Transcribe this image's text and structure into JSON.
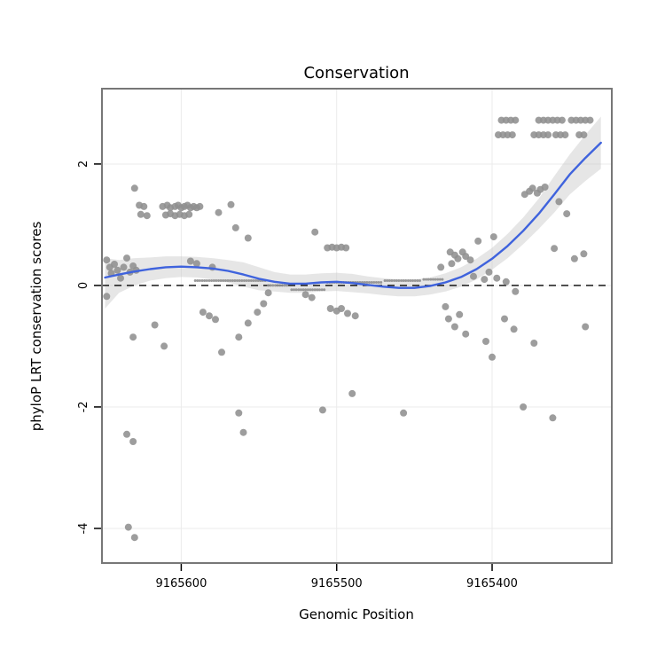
{
  "chart_data": {
    "type": "scatter",
    "title": "Conservation",
    "xlabel": "Genomic Position",
    "ylabel": "phyloP LRT conservation scores",
    "legend": "none",
    "grid": "on",
    "x_axis_reversed": true,
    "x_ticks": [
      9165600,
      9165500,
      9165400
    ],
    "y_ticks": [
      2,
      0,
      -2,
      -4
    ],
    "x_domain": [
      9165651,
      9165323
    ],
    "y_domain": [
      3.24,
      -4.57
    ],
    "reference_line_y": 0,
    "colors": {
      "point": "#8f8f8f",
      "line": "#3f63dd",
      "ribbon": "#c8c8c8",
      "border": "#777777",
      "grid": "#ebebeb",
      "axis": "#000000"
    },
    "points": [
      [
        9165648,
        0.42
      ],
      [
        9165646,
        0.3
      ],
      [
        9165645,
        0.2
      ],
      [
        9165643,
        0.35
      ],
      [
        9165641,
        0.25
      ],
      [
        9165639,
        0.12
      ],
      [
        9165637,
        0.3
      ],
      [
        9165635,
        0.45
      ],
      [
        9165633,
        0.22
      ],
      [
        9165631,
        0.32
      ],
      [
        9165629,
        0.25
      ],
      [
        9165630,
        1.6
      ],
      [
        9165627,
        1.32
      ],
      [
        9165624,
        1.3
      ],
      [
        9165626,
        1.17
      ],
      [
        9165622,
        1.15
      ],
      [
        9165612,
        1.3
      ],
      [
        9165609,
        1.32
      ],
      [
        9165607,
        1.28
      ],
      [
        9165604,
        1.3
      ],
      [
        9165602,
        1.32
      ],
      [
        9165600,
        1.28
      ],
      [
        9165598,
        1.3
      ],
      [
        9165596,
        1.32
      ],
      [
        9165594,
        1.28
      ],
      [
        9165592,
        1.3
      ],
      [
        9165590,
        1.28
      ],
      [
        9165588,
        1.3
      ],
      [
        9165610,
        1.16
      ],
      [
        9165607,
        1.18
      ],
      [
        9165604,
        1.15
      ],
      [
        9165601,
        1.17
      ],
      [
        9165598,
        1.15
      ],
      [
        9165595,
        1.17
      ],
      [
        9165576,
        1.2
      ],
      [
        9165568,
        1.33
      ],
      [
        9165565,
        0.95
      ],
      [
        9165557,
        0.78
      ],
      [
        9165594,
        0.4
      ],
      [
        9165590,
        0.36
      ],
      [
        9165580,
        0.3
      ],
      [
        9165648,
        -0.18
      ],
      [
        9165631,
        -0.85
      ],
      [
        9165617,
        -0.65
      ],
      [
        9165611,
        -1.0
      ],
      [
        9165586,
        -0.44
      ],
      [
        9165582,
        -0.5
      ],
      [
        9165578,
        -0.56
      ],
      [
        9165574,
        -1.1
      ],
      [
        9165563,
        -0.85
      ],
      [
        9165557,
        -0.62
      ],
      [
        9165551,
        -0.44
      ],
      [
        9165547,
        -0.3
      ],
      [
        9165544,
        -0.12
      ],
      [
        9165635,
        -2.45
      ],
      [
        9165631,
        -2.57
      ],
      [
        9165634,
        -3.98
      ],
      [
        9165630,
        -4.15
      ],
      [
        9165563,
        -2.1
      ],
      [
        9165560,
        -2.42
      ],
      [
        9165514,
        0.88
      ],
      [
        9165506,
        0.62
      ],
      [
        9165503,
        0.63
      ],
      [
        9165500,
        0.62
      ],
      [
        9165497,
        0.63
      ],
      [
        9165494,
        0.62
      ],
      [
        9165520,
        -0.15
      ],
      [
        9165516,
        -0.2
      ],
      [
        9165504,
        -0.38
      ],
      [
        9165500,
        -0.42
      ],
      [
        9165497,
        -0.38
      ],
      [
        9165493,
        -0.46
      ],
      [
        9165488,
        -0.5
      ],
      [
        9165509,
        -2.05
      ],
      [
        9165490,
        -1.78
      ],
      [
        9165457,
        -2.1
      ],
      [
        9165433,
        0.3
      ],
      [
        9165427,
        0.55
      ],
      [
        9165424,
        0.5
      ],
      [
        9165422,
        0.44
      ],
      [
        9165419,
        0.55
      ],
      [
        9165417,
        0.48
      ],
      [
        9165414,
        0.42
      ],
      [
        9165426,
        0.36
      ],
      [
        9165409,
        0.73
      ],
      [
        9165399,
        0.8
      ],
      [
        9165412,
        0.15
      ],
      [
        9165405,
        0.1
      ],
      [
        9165402,
        0.22
      ],
      [
        9165397,
        0.12
      ],
      [
        9165391,
        0.06
      ],
      [
        9165385,
        -0.1
      ],
      [
        9165379,
        1.5
      ],
      [
        9165376,
        1.55
      ],
      [
        9165374,
        1.6
      ],
      [
        9165371,
        1.52
      ],
      [
        9165369,
        1.58
      ],
      [
        9165366,
        1.62
      ],
      [
        9165357,
        1.38
      ],
      [
        9165352,
        1.18
      ],
      [
        9165360,
        0.61
      ],
      [
        9165347,
        0.44
      ],
      [
        9165341,
        0.52
      ],
      [
        9165394,
        2.72
      ],
      [
        9165391,
        2.72
      ],
      [
        9165388,
        2.72
      ],
      [
        9165385,
        2.72
      ],
      [
        9165370,
        2.72
      ],
      [
        9165367,
        2.72
      ],
      [
        9165364,
        2.72
      ],
      [
        9165361,
        2.72
      ],
      [
        9165358,
        2.72
      ],
      [
        9165355,
        2.72
      ],
      [
        9165349,
        2.72
      ],
      [
        9165346,
        2.72
      ],
      [
        9165343,
        2.72
      ],
      [
        9165340,
        2.72
      ],
      [
        9165337,
        2.72
      ],
      [
        9165396,
        2.48
      ],
      [
        9165393,
        2.48
      ],
      [
        9165390,
        2.48
      ],
      [
        9165387,
        2.48
      ],
      [
        9165373,
        2.48
      ],
      [
        9165370,
        2.48
      ],
      [
        9165367,
        2.48
      ],
      [
        9165364,
        2.48
      ],
      [
        9165359,
        2.48
      ],
      [
        9165356,
        2.48
      ],
      [
        9165353,
        2.48
      ],
      [
        9165344,
        2.48
      ],
      [
        9165341,
        2.48
      ],
      [
        9165430,
        -0.35
      ],
      [
        9165428,
        -0.55
      ],
      [
        9165424,
        -0.68
      ],
      [
        9165421,
        -0.48
      ],
      [
        9165417,
        -0.8
      ],
      [
        9165404,
        -0.92
      ],
      [
        9165400,
        -1.18
      ],
      [
        9165392,
        -0.55
      ],
      [
        9165386,
        -0.72
      ],
      [
        9165373,
        -0.95
      ],
      [
        9165380,
        -2.0
      ],
      [
        9165361,
        -2.18
      ],
      [
        9165340,
        -0.68
      ]
    ],
    "dense_segments": [
      {
        "x1": 9165591,
        "x2": 9165546,
        "y": 0.08,
        "step": 1.5
      },
      {
        "x1": 9165544,
        "x2": 9165531,
        "y": 0.0,
        "step": 1.5
      },
      {
        "x1": 9165529,
        "x2": 9165508,
        "y": -0.07,
        "step": 1.5
      },
      {
        "x1": 9165506,
        "x2": 9165471,
        "y": 0.05,
        "step": 1.5
      },
      {
        "x1": 9165469,
        "x2": 9165446,
        "y": 0.08,
        "step": 1.5
      },
      {
        "x1": 9165444,
        "x2": 9165431,
        "y": 0.1,
        "step": 1.5
      }
    ],
    "smooth": [
      [
        9165649,
        0.13
      ],
      [
        9165640,
        0.18
      ],
      [
        9165630,
        0.23
      ],
      [
        9165620,
        0.27
      ],
      [
        9165610,
        0.3
      ],
      [
        9165600,
        0.31
      ],
      [
        9165590,
        0.3
      ],
      [
        9165580,
        0.28
      ],
      [
        9165570,
        0.24
      ],
      [
        9165560,
        0.18
      ],
      [
        9165550,
        0.11
      ],
      [
        9165540,
        0.06
      ],
      [
        9165530,
        0.03
      ],
      [
        9165520,
        0.03
      ],
      [
        9165510,
        0.05
      ],
      [
        9165500,
        0.06
      ],
      [
        9165490,
        0.04
      ],
      [
        9165480,
        0.01
      ],
      [
        9165470,
        -0.02
      ],
      [
        9165460,
        -0.04
      ],
      [
        9165450,
        -0.04
      ],
      [
        9165440,
        -0.01
      ],
      [
        9165430,
        0.05
      ],
      [
        9165420,
        0.14
      ],
      [
        9165410,
        0.27
      ],
      [
        9165400,
        0.44
      ],
      [
        9165390,
        0.65
      ],
      [
        9165380,
        0.9
      ],
      [
        9165370,
        1.18
      ],
      [
        9165360,
        1.5
      ],
      [
        9165350,
        1.83
      ],
      [
        9165340,
        2.1
      ],
      [
        9165330,
        2.35
      ]
    ],
    "ribbon": [
      [
        9165649,
        -0.38,
        0.45
      ],
      [
        9165640,
        -0.12,
        0.42
      ],
      [
        9165630,
        0.0,
        0.45
      ],
      [
        9165620,
        0.08,
        0.46
      ],
      [
        9165610,
        0.12,
        0.48
      ],
      [
        9165600,
        0.14,
        0.48
      ],
      [
        9165590,
        0.13,
        0.47
      ],
      [
        9165580,
        0.1,
        0.45
      ],
      [
        9165570,
        0.05,
        0.42
      ],
      [
        9165560,
        -0.02,
        0.38
      ],
      [
        9165550,
        -0.08,
        0.3
      ],
      [
        9165540,
        -0.1,
        0.22
      ],
      [
        9165530,
        -0.12,
        0.18
      ],
      [
        9165520,
        -0.12,
        0.18
      ],
      [
        9165510,
        -0.1,
        0.2
      ],
      [
        9165500,
        -0.09,
        0.21
      ],
      [
        9165490,
        -0.11,
        0.19
      ],
      [
        9165480,
        -0.13,
        0.15
      ],
      [
        9165470,
        -0.16,
        0.12
      ],
      [
        9165460,
        -0.18,
        0.1
      ],
      [
        9165450,
        -0.18,
        0.1
      ],
      [
        9165440,
        -0.15,
        0.13
      ],
      [
        9165430,
        -0.1,
        0.2
      ],
      [
        9165420,
        -0.02,
        0.3
      ],
      [
        9165410,
        0.1,
        0.44
      ],
      [
        9165400,
        0.26,
        0.62
      ],
      [
        9165390,
        0.45,
        0.85
      ],
      [
        9165380,
        0.68,
        1.12
      ],
      [
        9165370,
        0.93,
        1.43
      ],
      [
        9165360,
        1.2,
        1.8
      ],
      [
        9165350,
        1.5,
        2.16
      ],
      [
        9165340,
        1.72,
        2.48
      ],
      [
        9165330,
        1.92,
        2.78
      ]
    ]
  }
}
